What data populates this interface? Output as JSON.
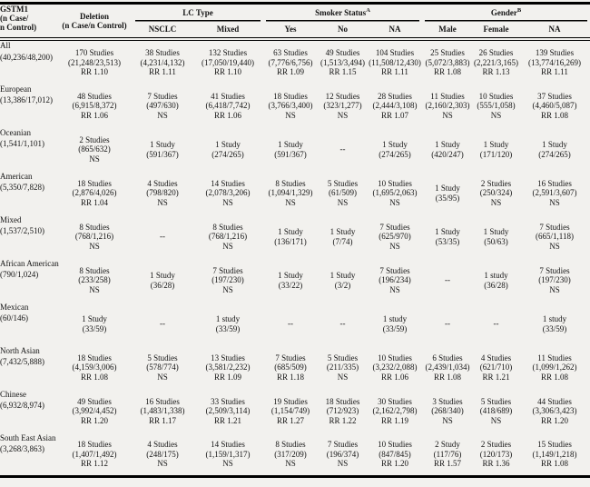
{
  "page": {
    "background_color": "#f2f1ee",
    "text_color": "#141414",
    "rule_color": "#000000"
  },
  "table": {
    "header": {
      "gstm1_lines": [
        "GSTM1",
        "(n Case/",
        "n Control)"
      ],
      "deletion_lines": [
        "Deletion",
        "(n Case/n Control)"
      ],
      "groups": [
        {
          "label": "LC Type",
          "sup": ""
        },
        {
          "label": "Smoker Status",
          "sup": "A"
        },
        {
          "label": "Gender",
          "sup": "B"
        }
      ],
      "subcols": [
        "NSCLC",
        "Mixed",
        "Yes",
        "No",
        "NA",
        "Male",
        "Female",
        "NA"
      ]
    },
    "rows": [
      {
        "label": "All",
        "size": "(40,236/48,200)",
        "cells": [
          [
            "170 Studies",
            "(21,248/23,513)",
            "RR 1.10"
          ],
          [
            "38 Studies",
            "(4,231/4,132)",
            "RR 1.11"
          ],
          [
            "132 Studies",
            "(17,050/19,440)",
            "RR 1.10"
          ],
          [
            "63 Studies",
            "(7,776/6,756)",
            "RR 1.09"
          ],
          [
            "49 Studies",
            "(1,513/3,494)",
            "RR 1.15"
          ],
          [
            "104 Studies",
            "(11,508/12,430)",
            "RR 1.11"
          ],
          [
            "25 Studies",
            "(5,072/3,883)",
            "RR 1.08"
          ],
          [
            "26 Studies",
            "(2,221/3,165)",
            "RR 1.13"
          ],
          [
            "139 Studies",
            "(13,774/16,269)",
            "RR 1.11"
          ]
        ]
      },
      {
        "label": "European",
        "size": "(13,386/17,012)",
        "cells": [
          [
            "48 Studies",
            "(6,915/8,372)",
            "RR 1.06"
          ],
          [
            "7 Studies",
            "(497/630)",
            "NS"
          ],
          [
            "41 Studies",
            "(6,418/7,742)",
            "RR 1.06"
          ],
          [
            "18 Studies",
            "(3,766/3,400)",
            "NS"
          ],
          [
            "12 Studies",
            "(323/1,277)",
            "NS"
          ],
          [
            "28 Studies",
            "(2,444/3,108)",
            "RR 1.07"
          ],
          [
            "11 Studies",
            "(2,160/2,303)",
            "NS"
          ],
          [
            "10 Studies",
            "(555/1,058)",
            "NS"
          ],
          [
            "37 Studies",
            "(4,460/5,087)",
            "RR 1.08"
          ]
        ]
      },
      {
        "label": "Oceanian",
        "size": "(1,541/1,101)",
        "cells": [
          [
            "2 Studies",
            "(865/632)",
            "NS"
          ],
          [
            "1 Study",
            "(591/367)"
          ],
          [
            "1 Study",
            "(274/265)"
          ],
          [
            "1 Study",
            "(591/367)"
          ],
          [
            "--"
          ],
          [
            "1 Study",
            "(274/265)"
          ],
          [
            "1 Study",
            "(420/247)"
          ],
          [
            "1 Study",
            "(171/120)"
          ],
          [
            "1 Study",
            "(274/265)"
          ]
        ]
      },
      {
        "label": "American",
        "size": "(5,350/7,828)",
        "cells": [
          [
            "18 Studies",
            "(2,876/4,026)",
            "RR 1.04"
          ],
          [
            "4 Studies",
            "(798/820)",
            "NS"
          ],
          [
            "14 Studies",
            "(2,078/3,206)",
            "NS"
          ],
          [
            "8 Studies",
            "(1,094/1,329)",
            "NS"
          ],
          [
            "5 Studies",
            "(61/509)",
            "NS"
          ],
          [
            "10 Studies",
            "(1,695/2,063)",
            "NS"
          ],
          [
            "1 Study",
            "(35/95)"
          ],
          [
            "2 Studies",
            "(250/324)",
            "NS"
          ],
          [
            "16 Studies",
            "(2,591/3,607)",
            "NS"
          ]
        ]
      },
      {
        "label": "Mixed",
        "size": "(1,537/2,510)",
        "cells": [
          [
            "8 Studies",
            "(768/1,216)",
            "NS"
          ],
          [
            "--"
          ],
          [
            "8 Studies",
            "(768/1,216)",
            "NS"
          ],
          [
            "1 Study",
            "(136/171)"
          ],
          [
            "1 Study",
            "(7/74)"
          ],
          [
            "7 Studies",
            "(625/970)",
            "NS"
          ],
          [
            "1 Study",
            "(53/35)"
          ],
          [
            "1 Study",
            "(50/63)"
          ],
          [
            "7 Studies",
            "(665/1,118)",
            "NS"
          ]
        ]
      },
      {
        "label": "African American",
        "size": "(790/1,024)",
        "cells": [
          [
            "8 Studies",
            "(233/258)",
            "NS"
          ],
          [
            "1 Study",
            "(36/28)"
          ],
          [
            "7 Studies",
            "(197/230)",
            "NS"
          ],
          [
            "1 Study",
            "(33/22)"
          ],
          [
            "1 Study",
            "(3/2)"
          ],
          [
            "7 Studies",
            "(196/234)",
            "NS"
          ],
          [
            "--"
          ],
          [
            "1 study",
            "(36/28)"
          ],
          [
            "7 Studies",
            "(197/230)",
            "NS"
          ]
        ]
      },
      {
        "label": "Mexican",
        "size": "(60/146)",
        "cells": [
          [
            "1 Study",
            "(33/59)"
          ],
          [
            "--"
          ],
          [
            "1 study",
            "(33/59)"
          ],
          [
            "--"
          ],
          [
            "--"
          ],
          [
            "1 study",
            "(33/59)"
          ],
          [
            "--"
          ],
          [
            "--"
          ],
          [
            "1 study",
            "(33/59)"
          ]
        ]
      },
      {
        "label": "North Asian",
        "size": "(7,432/5,888)",
        "cells": [
          [
            "18 Studies",
            "(4,159/3,006)",
            "RR 1.08"
          ],
          [
            "5 Studies",
            "(578/774)",
            "NS"
          ],
          [
            "13 Studies",
            "(3,581/2,232)",
            "RR 1.09"
          ],
          [
            "7 Studies",
            "(685/509)",
            "RR 1.18"
          ],
          [
            "5 Studies",
            "(211/335)",
            "NS"
          ],
          [
            "10 Studies",
            "(3,232/2,088)",
            "RR 1.06"
          ],
          [
            "6 Studies",
            "(2,439/1,034)",
            "RR 1.08"
          ],
          [
            "4 Studies",
            "(621/710)",
            "RR 1.21"
          ],
          [
            "11 Studies",
            "(1,099/1,262)",
            "RR 1.08"
          ]
        ]
      },
      {
        "label": "Chinese",
        "size": "(6,932/8,974)",
        "cells": [
          [
            "49 Studies",
            "(3,992/4,452)",
            "RR 1.20"
          ],
          [
            "16 Studies",
            "(1,483/1,338)",
            "RR 1.17"
          ],
          [
            "33 Studies",
            "(2,509/3,114)",
            "RR 1.21"
          ],
          [
            "19 Studies",
            "(1,154/749)",
            "RR 1.27"
          ],
          [
            "18 Studies",
            "(712/923)",
            "RR 1.22"
          ],
          [
            "30 Studies",
            "(2,162/2,798)",
            "RR 1.19"
          ],
          [
            "3 Studies",
            "(268/340)",
            "NS"
          ],
          [
            "5 Studies",
            "(418/689)",
            "NS"
          ],
          [
            "44 Studies",
            "(3,306/3,423)",
            "RR 1.20"
          ]
        ]
      },
      {
        "label": "South East Asian",
        "size": "(3,268/3,863)",
        "cells": [
          [
            "18 Studies",
            "(1,407/1,492)",
            "RR 1.12"
          ],
          [
            "4 Studies",
            "(248/175)",
            "NS"
          ],
          [
            "14 Studies",
            "(1,159/1,317)",
            "NS"
          ],
          [
            "8 Studies",
            "(317/209)",
            "NS"
          ],
          [
            "7 Studies",
            "(196/374)",
            "NS"
          ],
          [
            "10 Studies",
            "(847/845)",
            "RR 1.20"
          ],
          [
            "2 Study",
            "(117/76)",
            "RR 1.57"
          ],
          [
            "2 Studies",
            "(120/173)",
            "RR 1.36"
          ],
          [
            "15 Studies",
            "(1,149/1,218)",
            "RR 1.08"
          ]
        ]
      }
    ]
  }
}
